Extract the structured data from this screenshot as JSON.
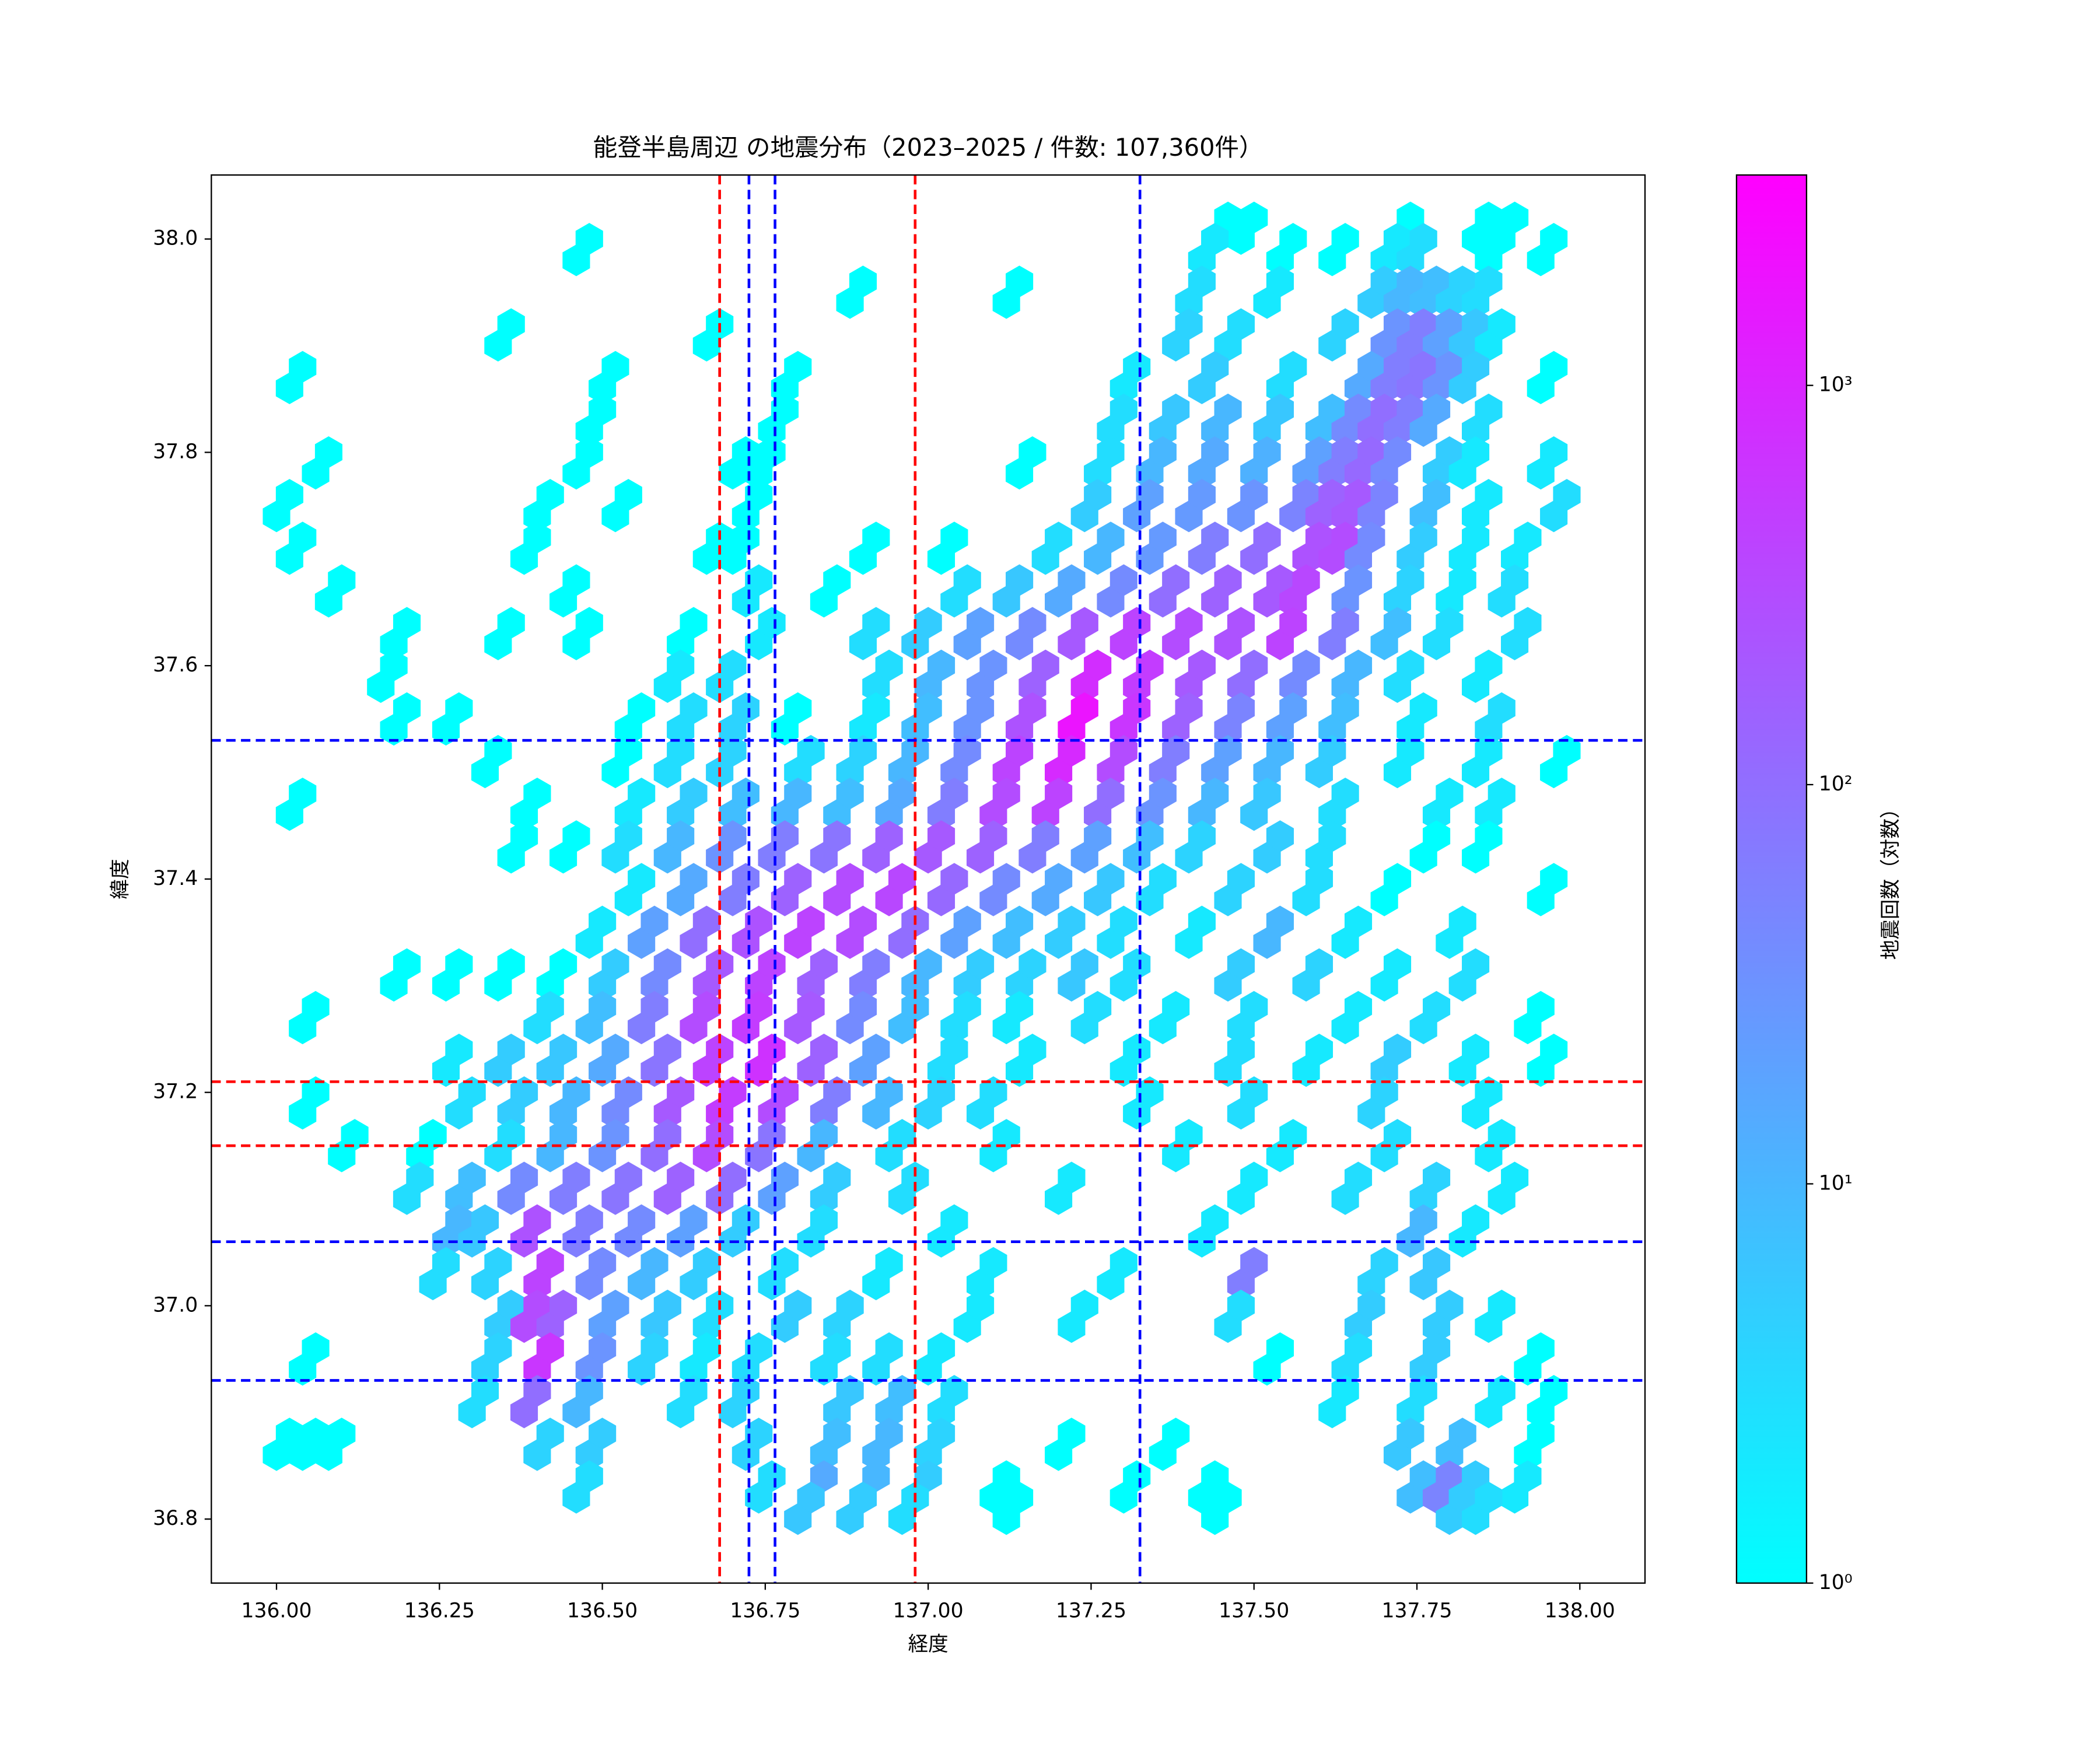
{
  "chart_data": {
    "type": "hexbin",
    "title": "能登半島周辺 の地震分布（2023–2025 / 件数: 107,360件）",
    "xlabel": "経度",
    "ylabel": "緯度",
    "xlim": [
      135.9,
      138.1
    ],
    "ylim": [
      36.74,
      38.06
    ],
    "xticks": [
      {
        "value": 136,
        "label": "136.00"
      },
      136.25,
      {
        "value": 136.5,
        "label": "136.50"
      },
      136.75,
      {
        "value": 137,
        "label": "137.00"
      },
      137.25,
      {
        "value": 137.5,
        "label": "137.50"
      },
      137.75,
      {
        "value": 138,
        "label": "138.00"
      }
    ],
    "yticks": [
      36.8,
      {
        "value": 37,
        "label": "37.0"
      },
      37.2,
      37.4,
      37.6,
      37.8,
      {
        "value": 38,
        "label": "38.0"
      }
    ],
    "colorbar": {
      "label": "地震回数（対数）",
      "log": true,
      "lim": [
        1,
        3365
      ],
      "colormap": [
        "#00ffff",
        "#ff00ff"
      ],
      "ticks": [
        {
          "value": 1,
          "label": "10⁰"
        },
        {
          "value": 10,
          "label": "10¹"
        },
        {
          "value": 100,
          "label": "10²"
        },
        {
          "value": 1000,
          "label": "10³"
        }
      ]
    },
    "vlines": [
      {
        "x": 136.68,
        "color": "#ff0000"
      },
      {
        "x": 136.98,
        "color": "#ff0000"
      },
      {
        "x": 136.725,
        "color": "#0000ff"
      },
      {
        "x": 136.765,
        "color": "#0000ff"
      },
      {
        "x": 137.325,
        "color": "#0000ff"
      }
    ],
    "hlines": [
      {
        "y": 37.21,
        "color": "#ff0000"
      },
      {
        "y": 37.15,
        "color": "#ff0000"
      },
      {
        "y": 37.53,
        "color": "#0000ff"
      },
      {
        "y": 37.06,
        "color": "#0000ff"
      },
      {
        "y": 36.93,
        "color": "#0000ff"
      }
    ],
    "rows": [
      {
        "y": 38.0,
        "x": [
          137.44,
          137.48,
          137.72,
          137.84,
          137.88
        ],
        "counts": [
          1,
          1,
          1,
          1,
          1
        ]
      },
      {
        "y": 37.98,
        "x": [
          136.46,
          137.42,
          137.54,
          137.62,
          137.7,
          137.74,
          137.86,
          137.94
        ],
        "counts": [
          1,
          2,
          1,
          1,
          2,
          3,
          1,
          1
        ]
      },
      {
        "y": 37.94,
        "x": [
          136.88,
          137.12,
          137.4,
          137.52,
          137.68,
          137.72,
          137.76,
          137.8,
          137.84
        ],
        "counts": [
          1,
          1,
          3,
          2,
          5,
          10,
          8,
          4,
          3
        ]
      },
      {
        "y": 37.9,
        "x": [
          136.34,
          136.66,
          137.38,
          137.46,
          137.62,
          137.7,
          137.74,
          137.78,
          137.82,
          137.86
        ],
        "counts": [
          1,
          1,
          4,
          3,
          4,
          30,
          60,
          20,
          6,
          2
        ]
      },
      {
        "y": 37.86,
        "x": [
          136.02,
          136.5,
          136.78,
          137.3,
          137.42,
          137.54,
          137.66,
          137.7,
          137.74,
          137.78,
          137.82,
          137.94
        ],
        "counts": [
          1,
          1,
          1,
          2,
          5,
          3,
          15,
          60,
          80,
          30,
          5,
          1
        ]
      },
      {
        "y": 37.82,
        "x": [
          136.48,
          136.76,
          137.28,
          137.36,
          137.44,
          137.52,
          137.6,
          137.64,
          137.68,
          137.72,
          137.76,
          137.84
        ],
        "counts": [
          1,
          1,
          3,
          6,
          10,
          6,
          8,
          40,
          100,
          60,
          15,
          3
        ]
      },
      {
        "y": 37.78,
        "x": [
          136.06,
          136.46,
          136.7,
          136.74,
          137.14,
          137.26,
          137.34,
          137.42,
          137.5,
          137.58,
          137.62,
          137.66,
          137.7,
          137.78,
          137.82,
          137.94
        ],
        "counts": [
          1,
          1,
          1,
          1,
          1,
          3,
          10,
          15,
          12,
          20,
          60,
          120,
          40,
          5,
          2,
          2
        ]
      },
      {
        "y": 37.74,
        "x": [
          136.0,
          136.4,
          136.52,
          136.72,
          137.24,
          137.32,
          137.4,
          137.48,
          137.56,
          137.6,
          137.64,
          137.68,
          137.76,
          137.84,
          137.96
        ],
        "counts": [
          1,
          1,
          1,
          1,
          5,
          20,
          25,
          30,
          50,
          150,
          200,
          50,
          8,
          2,
          3
        ]
      },
      {
        "y": 37.7,
        "x": [
          136.02,
          136.38,
          136.66,
          136.7,
          136.9,
          137.02,
          137.18,
          137.26,
          137.34,
          137.42,
          137.5,
          137.58,
          137.62,
          137.66,
          137.74,
          137.82,
          137.9
        ],
        "counts": [
          1,
          1,
          1,
          1,
          1,
          1,
          3,
          10,
          25,
          60,
          100,
          250,
          300,
          40,
          5,
          2,
          2
        ]
      },
      {
        "y": 37.66,
        "x": [
          136.08,
          136.44,
          136.72,
          136.84,
          137.04,
          137.12,
          137.2,
          137.28,
          137.36,
          137.44,
          137.52,
          137.56,
          137.64,
          137.72,
          137.8,
          137.88
        ],
        "counts": [
          1,
          1,
          2,
          1,
          3,
          6,
          15,
          40,
          100,
          150,
          200,
          350,
          30,
          4,
          2,
          3
        ]
      },
      {
        "y": 37.62,
        "x": [
          136.18,
          136.34,
          136.46,
          136.62,
          136.74,
          136.9,
          136.98,
          137.06,
          137.14,
          137.22,
          137.3,
          137.38,
          137.46,
          137.54,
          137.62,
          137.7,
          137.78,
          137.9
        ],
        "counts": [
          1,
          1,
          1,
          1,
          2,
          3,
          5,
          20,
          40,
          200,
          400,
          300,
          250,
          400,
          60,
          8,
          3,
          3
        ]
      },
      {
        "y": 37.58,
        "x": [
          136.16,
          136.6,
          136.68,
          136.92,
          137.0,
          137.08,
          137.16,
          137.24,
          137.32,
          137.4,
          137.48,
          137.56,
          137.64,
          137.72,
          137.84
        ],
        "counts": [
          1,
          2,
          3,
          3,
          10,
          30,
          150,
          800,
          500,
          200,
          100,
          40,
          10,
          3,
          2
        ]
      },
      {
        "y": 37.54,
        "x": [
          136.18,
          136.26,
          136.54,
          136.62,
          136.7,
          136.78,
          136.9,
          136.98,
          137.06,
          137.14,
          137.22,
          137.3,
          137.38,
          137.46,
          137.54,
          137.62,
          137.74,
          137.86
        ],
        "counts": [
          1,
          1,
          1,
          3,
          4,
          1,
          2,
          8,
          30,
          250,
          1800,
          600,
          150,
          50,
          20,
          8,
          2,
          3
        ]
      },
      {
        "y": 37.5,
        "x": [
          136.32,
          136.52,
          136.6,
          136.68,
          136.8,
          136.88,
          136.96,
          137.04,
          137.12,
          137.2,
          137.28,
          137.36,
          137.44,
          137.52,
          137.6,
          137.72,
          137.84,
          137.96
        ],
        "counts": [
          1,
          1,
          3,
          4,
          3,
          4,
          10,
          40,
          400,
          900,
          300,
          60,
          20,
          10,
          5,
          2,
          2,
          1
        ]
      },
      {
        "y": 37.46,
        "x": [
          136.02,
          136.38,
          136.54,
          136.62,
          136.7,
          136.78,
          136.86,
          136.94,
          137.02,
          137.1,
          137.18,
          137.26,
          137.34,
          137.42,
          137.5,
          137.62,
          137.78,
          137.86
        ],
        "counts": [
          1,
          1,
          2,
          5,
          8,
          10,
          8,
          15,
          60,
          300,
          400,
          100,
          30,
          10,
          6,
          3,
          2,
          2
        ]
      },
      {
        "y": 37.42,
        "x": [
          136.36,
          136.44,
          136.52,
          136.6,
          136.68,
          136.76,
          136.84,
          136.92,
          137.0,
          137.08,
          137.16,
          137.24,
          137.32,
          137.4,
          137.52,
          137.6,
          137.76,
          137.84
        ],
        "counts": [
          1,
          1,
          3,
          10,
          30,
          60,
          80,
          150,
          200,
          150,
          60,
          20,
          8,
          4,
          5,
          3,
          1,
          1
        ]
      },
      {
        "y": 37.38,
        "x": [
          136.54,
          136.62,
          136.7,
          136.78,
          136.86,
          136.94,
          137.02,
          137.1,
          137.18,
          137.26,
          137.34,
          137.46,
          137.58,
          137.7,
          137.94
        ],
        "counts": [
          2,
          15,
          60,
          150,
          300,
          350,
          120,
          40,
          15,
          6,
          3,
          4,
          3,
          1,
          1
        ]
      },
      {
        "y": 37.34,
        "x": [
          136.48,
          136.56,
          136.64,
          136.72,
          136.8,
          136.88,
          136.96,
          137.04,
          137.12,
          137.2,
          137.28,
          137.4,
          137.52,
          137.64,
          137.8
        ],
        "counts": [
          2,
          20,
          100,
          250,
          400,
          300,
          100,
          20,
          8,
          5,
          3,
          2,
          10,
          2,
          2
        ]
      },
      {
        "y": 37.3,
        "x": [
          136.18,
          136.26,
          136.34,
          136.42,
          136.5,
          136.58,
          136.66,
          136.74,
          136.82,
          136.9,
          136.98,
          137.06,
          137.14,
          137.22,
          137.3,
          137.46,
          137.58,
          137.7,
          137.82
        ],
        "counts": [
          1,
          1,
          1,
          1,
          5,
          40,
          200,
          400,
          150,
          60,
          10,
          5,
          4,
          6,
          3,
          5,
          4,
          2,
          3
        ]
      },
      {
        "y": 37.26,
        "x": [
          136.04,
          136.4,
          136.48,
          136.56,
          136.64,
          136.72,
          136.8,
          136.88,
          136.96,
          137.04,
          137.12,
          137.24,
          137.36,
          137.48,
          137.64,
          137.76,
          137.92
        ],
        "counts": [
          1,
          3,
          8,
          60,
          300,
          500,
          200,
          40,
          8,
          3,
          2,
          3,
          2,
          3,
          2,
          3,
          1
        ]
      },
      {
        "y": 37.22,
        "x": [
          136.26,
          136.34,
          136.42,
          136.5,
          136.58,
          136.66,
          136.74,
          136.82,
          136.9,
          137.02,
          137.14,
          137.3,
          137.46,
          137.58,
          137.7,
          137.82,
          137.94
        ],
        "counts": [
          2,
          5,
          6,
          15,
          80,
          400,
          700,
          150,
          20,
          3,
          2,
          2,
          3,
          2,
          5,
          2,
          1
        ]
      },
      {
        "y": 37.18,
        "x": [
          136.04,
          136.28,
          136.36,
          136.44,
          136.52,
          136.6,
          136.68,
          136.76,
          136.84,
          136.92,
          137.0,
          137.08,
          137.32,
          137.48,
          137.68,
          137.84
        ],
        "counts": [
          1,
          3,
          5,
          10,
          40,
          200,
          500,
          300,
          60,
          10,
          4,
          3,
          2,
          3,
          4,
          2
        ]
      },
      {
        "y": 37.14,
        "x": [
          136.1,
          136.22,
          136.34,
          136.42,
          136.5,
          136.58,
          136.66,
          136.74,
          136.82,
          136.94,
          137.1,
          137.38,
          137.54,
          137.7,
          137.86
        ],
        "counts": [
          1,
          1,
          3,
          10,
          30,
          100,
          300,
          80,
          10,
          3,
          2,
          2,
          2,
          3,
          2
        ]
      },
      {
        "y": 37.1,
        "x": [
          136.2,
          136.28,
          136.36,
          136.44,
          136.52,
          136.6,
          136.68,
          136.76,
          136.84,
          136.96,
          137.2,
          137.48,
          137.64,
          137.76,
          137.88
        ],
        "counts": [
          3,
          8,
          40,
          60,
          80,
          150,
          100,
          20,
          5,
          3,
          2,
          2,
          3,
          4,
          2
        ]
      },
      {
        "y": 37.06,
        "x": [
          136.26,
          136.3,
          136.38,
          136.46,
          136.54,
          136.62,
          136.7,
          136.82,
          137.02,
          137.42,
          137.74,
          137.82
        ],
        "counts": [
          10,
          6,
          250,
          60,
          40,
          20,
          5,
          3,
          2,
          2,
          10,
          2
        ]
      },
      {
        "y": 37.02,
        "x": [
          136.24,
          136.32,
          136.4,
          136.48,
          136.56,
          136.64,
          136.76,
          136.92,
          137.08,
          137.28,
          137.48,
          137.68,
          137.76
        ],
        "counts": [
          3,
          4,
          400,
          40,
          10,
          5,
          3,
          2,
          2,
          2,
          60,
          4,
          6
        ]
      },
      {
        "y": 36.98,
        "x": [
          136.34,
          136.38,
          136.42,
          136.5,
          136.58,
          136.66,
          136.78,
          136.86,
          137.06,
          137.22,
          137.46,
          137.66,
          137.78,
          137.86
        ],
        "counts": [
          5,
          300,
          150,
          20,
          6,
          3,
          5,
          4,
          2,
          2,
          3,
          5,
          5,
          2
        ]
      },
      {
        "y": 36.94,
        "x": [
          136.04,
          136.32,
          136.4,
          136.48,
          136.56,
          136.64,
          136.72,
          136.84,
          136.92,
          137.0,
          137.52,
          137.64,
          137.76,
          137.92
        ],
        "counts": [
          1,
          4,
          600,
          30,
          4,
          2,
          3,
          3,
          3,
          2,
          1,
          3,
          5,
          1
        ]
      },
      {
        "y": 36.9,
        "x": [
          136.3,
          136.38,
          136.46,
          136.62,
          136.7,
          136.86,
          136.94,
          137.02,
          137.62,
          137.74,
          137.86,
          137.94
        ],
        "counts": [
          3,
          100,
          10,
          3,
          4,
          6,
          8,
          3,
          2,
          3,
          2,
          1
        ]
      },
      {
        "y": 36.86,
        "x": [
          136.0,
          136.04,
          136.08,
          136.4,
          136.48,
          136.72,
          136.84,
          136.92,
          137.0,
          137.2,
          137.36,
          137.72,
          137.8,
          137.92
        ],
        "counts": [
          1,
          1,
          1,
          4,
          5,
          4,
          8,
          10,
          4,
          1,
          1,
          6,
          8,
          1
        ]
      },
      {
        "y": 36.82,
        "x": [
          136.46,
          136.74,
          136.82,
          136.9,
          136.98,
          137.1,
          137.3,
          137.42,
          137.74,
          137.78,
          137.82,
          137.9
        ],
        "counts": [
          3,
          3,
          15,
          10,
          5,
          1,
          1,
          1,
          8,
          50,
          5,
          2
        ]
      },
      {
        "y": 36.8,
        "x": [
          136.8,
          136.88,
          136.96,
          137.12,
          137.44,
          137.8,
          137.84
        ],
        "counts": [
          6,
          5,
          3,
          1,
          1,
          5,
          3
        ]
      }
    ]
  }
}
